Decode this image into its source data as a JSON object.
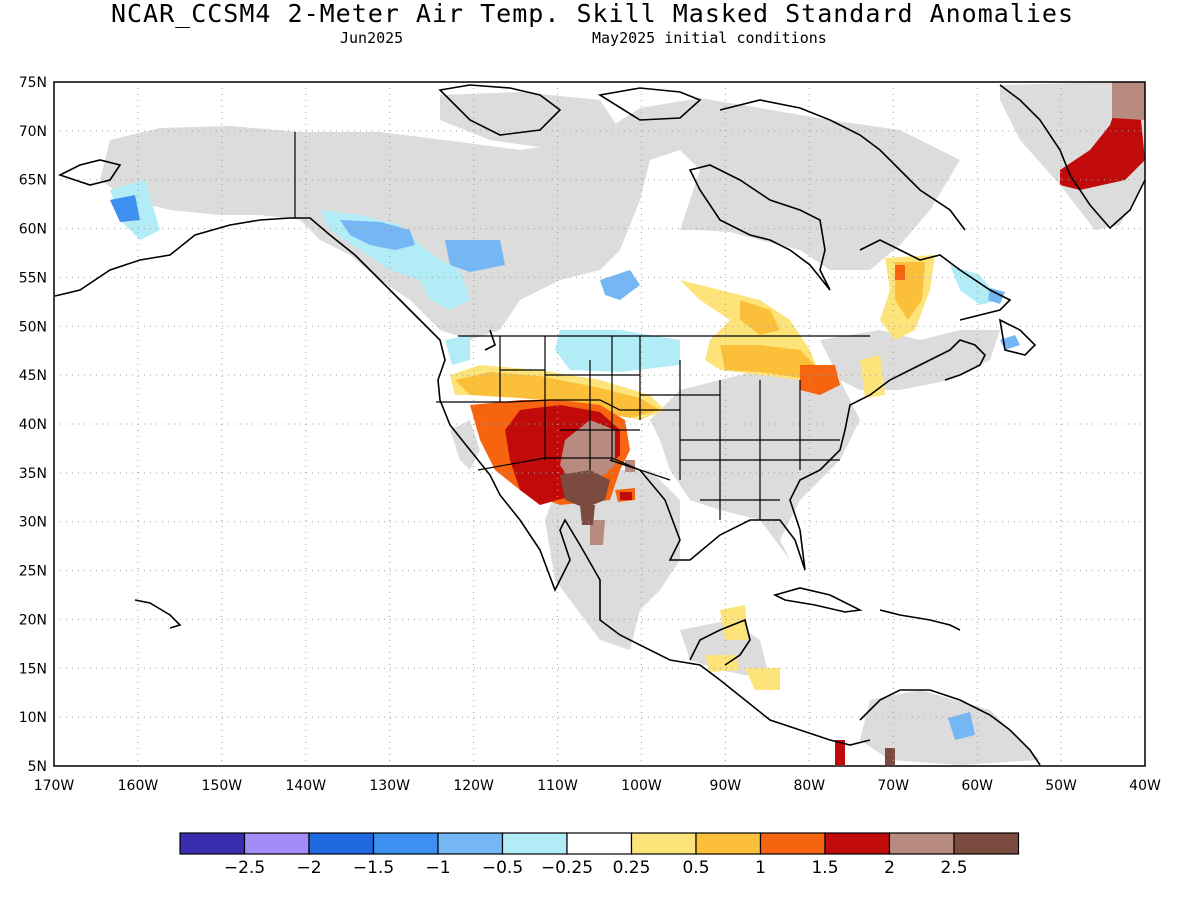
{
  "title": "NCAR_CCSM4 2-Meter Air Temp. Skill Masked Standard Anomalies",
  "month": "Jun2025",
  "init": "May2025 initial conditions",
  "lat_labels": [
    "75N",
    "70N",
    "65N",
    "60N",
    "55N",
    "50N",
    "45N",
    "40N",
    "35N",
    "30N",
    "25N",
    "20N",
    "15N",
    "10N",
    "5N"
  ],
  "lon_labels": [
    "170W",
    "160W",
    "150W",
    "140W",
    "130W",
    "120W",
    "110W",
    "100W",
    "90W",
    "80W",
    "70W",
    "60W",
    "50W",
    "40W"
  ],
  "colorbar": {
    "colors": [
      "#3b2db0",
      "#a28cf7",
      "#2068e0",
      "#3d8ff0",
      "#75b6f5",
      "#b2edf7",
      "#ffffff",
      "#fde47a",
      "#fbbf3a",
      "#f7640f",
      "#c10a0a",
      "#b88b80",
      "#7c4b40"
    ],
    "labels": [
      "-2.5",
      "-2",
      "-1.5",
      "-1",
      "-0.5",
      "-0.25",
      "0.25",
      "0.5",
      "1",
      "1.5",
      "2",
      "2.5"
    ]
  },
  "colors": {
    "land_mask": "#dcdcdc",
    "grid": "#a0a0a0"
  }
}
